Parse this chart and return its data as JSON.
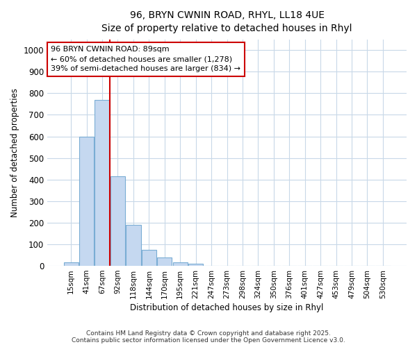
{
  "title_line1": "96, BRYN CWNIN ROAD, RHYL, LL18 4UE",
  "title_line2": "Size of property relative to detached houses in Rhyl",
  "xlabel": "Distribution of detached houses by size in Rhyl",
  "ylabel": "Number of detached properties",
  "categories": [
    "15sqm",
    "41sqm",
    "67sqm",
    "92sqm",
    "118sqm",
    "144sqm",
    "170sqm",
    "195sqm",
    "221sqm",
    "247sqm",
    "273sqm",
    "298sqm",
    "324sqm",
    "350sqm",
    "376sqm",
    "401sqm",
    "427sqm",
    "453sqm",
    "479sqm",
    "504sqm",
    "530sqm"
  ],
  "values": [
    15,
    600,
    770,
    415,
    190,
    75,
    40,
    15,
    10,
    0,
    0,
    0,
    0,
    0,
    0,
    0,
    0,
    0,
    0,
    0,
    0
  ],
  "bar_color": "#c5d8f0",
  "bar_edge_color": "#7aadd4",
  "ylim": [
    0,
    1050
  ],
  "yticks": [
    0,
    100,
    200,
    300,
    400,
    500,
    600,
    700,
    800,
    900,
    1000
  ],
  "annotation_line1": "96 BRYN CWNIN ROAD: 89sqm",
  "annotation_line2": "← 60% of detached houses are smaller (1,278)",
  "annotation_line3": "39% of semi-detached houses are larger (834) →",
  "annotation_box_color": "#cc0000",
  "vline_color": "#cc0000",
  "vline_x": 2.5,
  "footer_line1": "Contains HM Land Registry data © Crown copyright and database right 2025.",
  "footer_line2": "Contains public sector information licensed under the Open Government Licence v3.0.",
  "background_color": "#ffffff",
  "grid_color": "#c8d8e8"
}
